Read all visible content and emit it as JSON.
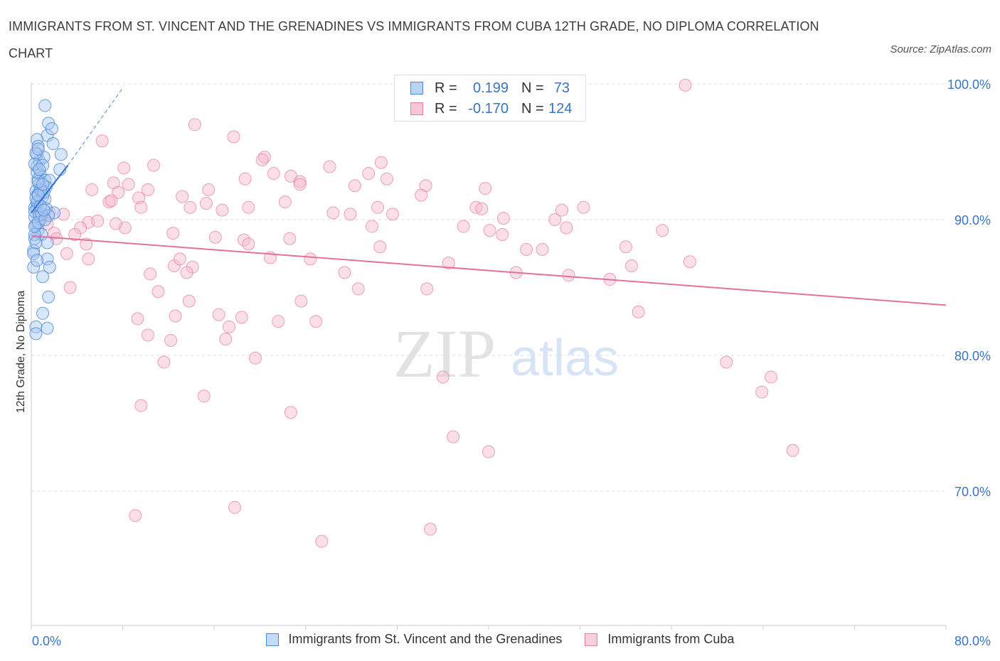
{
  "title": "IMMIGRANTS FROM ST. VINCENT AND THE GRENADINES VS IMMIGRANTS FROM CUBA 12TH GRADE, NO DIPLOMA CORRELATION CHART",
  "source": "Source: ZipAtlas.com",
  "watermark": {
    "zip": "ZIP",
    "atlas": "atlas"
  },
  "legend_top": {
    "rows": [
      {
        "r_label": "R =",
        "r_value": "0.199",
        "n_label": "N =",
        "n_value": "73"
      },
      {
        "r_label": "R =",
        "r_value": "-0.170",
        "n_label": "N =",
        "n_value": "124"
      }
    ]
  },
  "colors": {
    "blue": "#4a86d8",
    "blue_fill": "#a9c8f2",
    "blue_line": "#2f6fd0",
    "pink": "#e87aa0",
    "pink_fill": "#f6b9cd",
    "pink_line": "#e2729c",
    "axis_text": "#3a73c4",
    "grid": "#dddddd"
  },
  "chart_data": {
    "type": "scatter",
    "title": "IMMIGRANTS FROM ST. VINCENT AND THE GRENADINES VS IMMIGRANTS FROM CUBA 12TH GRADE, NO DIPLOMA CORRELATION CHART",
    "xlabel": "",
    "ylabel": "12th Grade, No Diploma",
    "xlim": [
      0,
      80
    ],
    "ylim": [
      60,
      100
    ],
    "x_tick_labels": [
      "0.0%",
      "80.0%"
    ],
    "y_ticks": [
      70,
      80,
      90,
      100
    ],
    "y_tick_labels": [
      "70.0%",
      "80.0%",
      "90.0%",
      "100.0%"
    ],
    "grid": true,
    "legend_position": "bottom",
    "series": [
      {
        "name": "Immigrants from St. Vincent and the Grenadines",
        "color": "#4a86d8",
        "R": 0.199,
        "N": 73,
        "trend": {
          "x": [
            0.0,
            3.2
          ],
          "y": [
            90.5,
            94.0
          ]
        },
        "trend_extension": {
          "x": [
            3.2,
            8.0
          ],
          "y": [
            94.0,
            99.7
          ]
        },
        "points": [
          [
            0.8,
            93.3
          ],
          [
            1.2,
            98.4
          ],
          [
            1.5,
            97.1
          ],
          [
            1.4,
            96.2
          ],
          [
            1.8,
            96.7
          ],
          [
            0.5,
            95.9
          ],
          [
            0.6,
            95.4
          ],
          [
            1.9,
            95.6
          ],
          [
            0.5,
            94.8
          ],
          [
            0.7,
            94.3
          ],
          [
            1.1,
            94.6
          ],
          [
            2.6,
            94.8
          ],
          [
            0.5,
            93.9
          ],
          [
            2.5,
            93.7
          ],
          [
            0.6,
            93.0
          ],
          [
            1.2,
            92.9
          ],
          [
            1.6,
            92.9
          ],
          [
            0.7,
            92.6
          ],
          [
            1.3,
            92.4
          ],
          [
            0.4,
            92.1
          ],
          [
            0.6,
            91.9
          ],
          [
            0.9,
            92.0
          ],
          [
            1.0,
            91.7
          ],
          [
            0.5,
            91.2
          ],
          [
            1.2,
            91.5
          ],
          [
            0.3,
            90.9
          ],
          [
            0.5,
            90.8
          ],
          [
            0.7,
            90.5
          ],
          [
            1.3,
            90.8
          ],
          [
            2.0,
            90.5
          ],
          [
            0.8,
            90.0
          ],
          [
            1.5,
            90.3
          ],
          [
            0.4,
            89.6
          ],
          [
            0.6,
            89.2
          ],
          [
            0.9,
            88.9
          ],
          [
            0.3,
            88.6
          ],
          [
            1.4,
            88.3
          ],
          [
            0.2,
            87.7
          ],
          [
            0.2,
            87.5
          ],
          [
            1.4,
            87.1
          ],
          [
            1.6,
            86.5
          ],
          [
            0.2,
            86.5
          ],
          [
            1.0,
            85.8
          ],
          [
            1.5,
            84.3
          ],
          [
            1.0,
            83.1
          ],
          [
            0.4,
            82.1
          ],
          [
            1.4,
            82.0
          ],
          [
            0.4,
            81.6
          ],
          [
            0.3,
            88.9
          ],
          [
            0.3,
            89.5
          ],
          [
            0.3,
            90.2
          ],
          [
            0.3,
            90.6
          ],
          [
            0.5,
            91.3
          ],
          [
            0.4,
            91.6
          ],
          [
            0.8,
            92.2
          ],
          [
            1.1,
            92.0
          ],
          [
            0.6,
            92.8
          ],
          [
            0.5,
            93.5
          ],
          [
            0.3,
            94.1
          ],
          [
            0.4,
            94.9
          ],
          [
            0.6,
            95.2
          ],
          [
            1.0,
            94.0
          ],
          [
            0.7,
            90.3
          ],
          [
            0.6,
            89.8
          ],
          [
            0.9,
            90.4
          ],
          [
            1.2,
            90.0
          ],
          [
            0.4,
            88.3
          ],
          [
            0.5,
            87.0
          ],
          [
            0.8,
            91.0
          ],
          [
            1.0,
            92.6
          ],
          [
            0.7,
            93.7
          ],
          [
            1.1,
            90.7
          ],
          [
            0.6,
            91.8
          ]
        ]
      },
      {
        "name": "Immigrants from Cuba",
        "color": "#e87aa0",
        "R": -0.17,
        "N": 124,
        "trend": {
          "x": [
            0.0,
            80.0
          ],
          "y": [
            88.8,
            83.7
          ]
        },
        "points": [
          [
            57.2,
            99.9
          ],
          [
            14.3,
            97.0
          ],
          [
            17.7,
            96.1
          ],
          [
            6.2,
            95.8
          ],
          [
            20.4,
            94.6
          ],
          [
            20.2,
            94.4
          ],
          [
            8.1,
            93.8
          ],
          [
            10.7,
            94.0
          ],
          [
            30.6,
            94.2
          ],
          [
            26.1,
            93.9
          ],
          [
            29.5,
            93.4
          ],
          [
            21.2,
            93.4
          ],
          [
            22.7,
            93.2
          ],
          [
            23.5,
            92.8
          ],
          [
            18.7,
            93.0
          ],
          [
            7.2,
            92.7
          ],
          [
            8.5,
            92.6
          ],
          [
            5.3,
            92.2
          ],
          [
            7.6,
            92.0
          ],
          [
            10.2,
            92.2
          ],
          [
            9.4,
            91.6
          ],
          [
            13.2,
            91.7
          ],
          [
            15.5,
            92.2
          ],
          [
            23.5,
            92.6
          ],
          [
            28.3,
            92.5
          ],
          [
            34.5,
            92.5
          ],
          [
            34.1,
            91.8
          ],
          [
            39.7,
            92.3
          ],
          [
            15.3,
            91.2
          ],
          [
            13.9,
            90.9
          ],
          [
            19.0,
            90.9
          ],
          [
            16.7,
            90.7
          ],
          [
            22.2,
            91.3
          ],
          [
            6.8,
            91.3
          ],
          [
            7.0,
            91.4
          ],
          [
            2.8,
            90.4
          ],
          [
            1.6,
            90.5
          ],
          [
            1.1,
            90.3
          ],
          [
            5.0,
            89.8
          ],
          [
            5.8,
            89.9
          ],
          [
            4.3,
            89.4
          ],
          [
            8.2,
            89.4
          ],
          [
            2.0,
            89.0
          ],
          [
            1.4,
            89.7
          ],
          [
            3.8,
            88.9
          ],
          [
            12.4,
            89.0
          ],
          [
            16.1,
            88.7
          ],
          [
            18.6,
            88.5
          ],
          [
            19.0,
            88.2
          ],
          [
            22.6,
            88.6
          ],
          [
            27.9,
            90.4
          ],
          [
            29.8,
            89.5
          ],
          [
            31.6,
            90.4
          ],
          [
            30.3,
            90.9
          ],
          [
            38.9,
            90.9
          ],
          [
            41.3,
            90.1
          ],
          [
            46.4,
            90.7
          ],
          [
            48.3,
            90.9
          ],
          [
            46.8,
            89.4
          ],
          [
            40.1,
            89.2
          ],
          [
            41.2,
            88.9
          ],
          [
            37.8,
            89.5
          ],
          [
            4.8,
            88.2
          ],
          [
            3.1,
            87.5
          ],
          [
            5.0,
            87.1
          ],
          [
            10.4,
            86.0
          ],
          [
            12.5,
            86.6
          ],
          [
            13.0,
            87.1
          ],
          [
            14.1,
            86.5
          ],
          [
            13.6,
            86.1
          ],
          [
            20.9,
            87.2
          ],
          [
            24.4,
            87.1
          ],
          [
            27.4,
            86.1
          ],
          [
            30.5,
            88.0
          ],
          [
            36.5,
            86.8
          ],
          [
            43.3,
            87.8
          ],
          [
            44.7,
            87.8
          ],
          [
            42.4,
            86.1
          ],
          [
            47.0,
            85.9
          ],
          [
            50.6,
            85.6
          ],
          [
            52.5,
            86.6
          ],
          [
            57.6,
            86.9
          ],
          [
            3.4,
            85.0
          ],
          [
            11.1,
            84.7
          ],
          [
            13.8,
            84.0
          ],
          [
            23.6,
            84.0
          ],
          [
            28.6,
            84.9
          ],
          [
            34.6,
            84.9
          ],
          [
            9.3,
            82.7
          ],
          [
            12.6,
            82.9
          ],
          [
            16.4,
            83.0
          ],
          [
            18.4,
            82.8
          ],
          [
            21.6,
            82.5
          ],
          [
            24.9,
            82.5
          ],
          [
            17.3,
            82.1
          ],
          [
            10.2,
            81.5
          ],
          [
            12.2,
            81.1
          ],
          [
            17.0,
            81.2
          ],
          [
            11.6,
            79.5
          ],
          [
            19.6,
            79.8
          ],
          [
            53.1,
            83.2
          ],
          [
            55.2,
            89.2
          ],
          [
            36.0,
            78.4
          ],
          [
            60.8,
            79.5
          ],
          [
            63.9,
            77.3
          ],
          [
            64.7,
            78.4
          ],
          [
            9.6,
            76.3
          ],
          [
            15.1,
            77.0
          ],
          [
            22.7,
            75.8
          ],
          [
            36.9,
            74.0
          ],
          [
            40.0,
            72.9
          ],
          [
            66.6,
            73.0
          ],
          [
            9.1,
            68.2
          ],
          [
            17.8,
            68.8
          ],
          [
            34.9,
            67.2
          ],
          [
            25.4,
            66.3
          ],
          [
            52.0,
            88.0
          ],
          [
            31.1,
            93.0
          ],
          [
            2.2,
            88.6
          ],
          [
            7.4,
            89.7
          ],
          [
            9.6,
            90.9
          ],
          [
            26.4,
            90.5
          ],
          [
            39.4,
            90.8
          ],
          [
            45.8,
            90.0
          ]
        ]
      }
    ]
  },
  "legend_bottom": [
    {
      "label": "Immigrants from St. Vincent and the Grenadines"
    },
    {
      "label": "Immigrants from Cuba"
    }
  ]
}
